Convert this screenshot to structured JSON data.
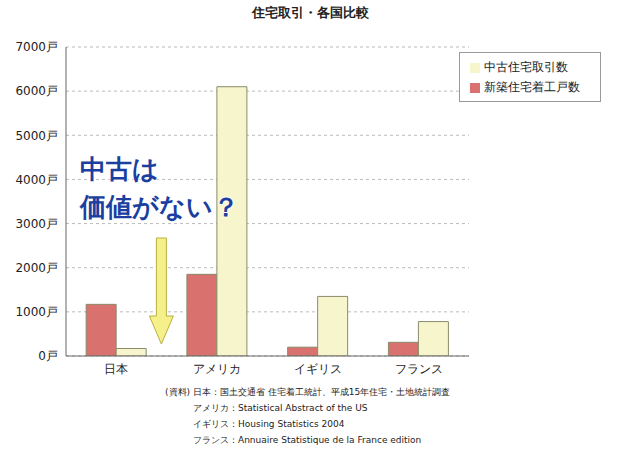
{
  "chart_data": {
    "type": "bar",
    "title": "住宅取引・各国比較",
    "categories": [
      "日本",
      "アメリカ",
      "イギリス",
      "フランス"
    ],
    "series": [
      {
        "name": "新築住宅着工戸数",
        "color": "#d9716f",
        "values": [
          1170,
          1850,
          200,
          310
        ]
      },
      {
        "name": "中古住宅取引数",
        "color": "#f7f5cc",
        "values": [
          170,
          6100,
          1350,
          780
        ]
      }
    ],
    "ylim": [
      0,
      7000
    ],
    "yticks": [
      {
        "value": 0,
        "label": "0戸"
      },
      {
        "value": 1000,
        "label": "1000戸"
      },
      {
        "value": 2000,
        "label": "2000戸"
      },
      {
        "value": 3000,
        "label": "3000戸"
      },
      {
        "value": 4000,
        "label": "4000戸"
      },
      {
        "value": 5000,
        "label": "5000戸"
      },
      {
        "value": 6000,
        "label": "6000戸"
      },
      {
        "value": 7000,
        "label": "7000戸"
      }
    ],
    "grid": true,
    "legend": "upper right",
    "annotation": [
      "中古は",
      "価値がない？"
    ],
    "source": [
      "(資料) 日本：国土交通省 住宅着工統計、平成15年住宅・土地統計調査",
      "アメリカ：Statistical Abstract of the US",
      "イギリス：Housing Statistics 2004",
      "フランス：Annuaire Statistique de la France edition"
    ]
  }
}
